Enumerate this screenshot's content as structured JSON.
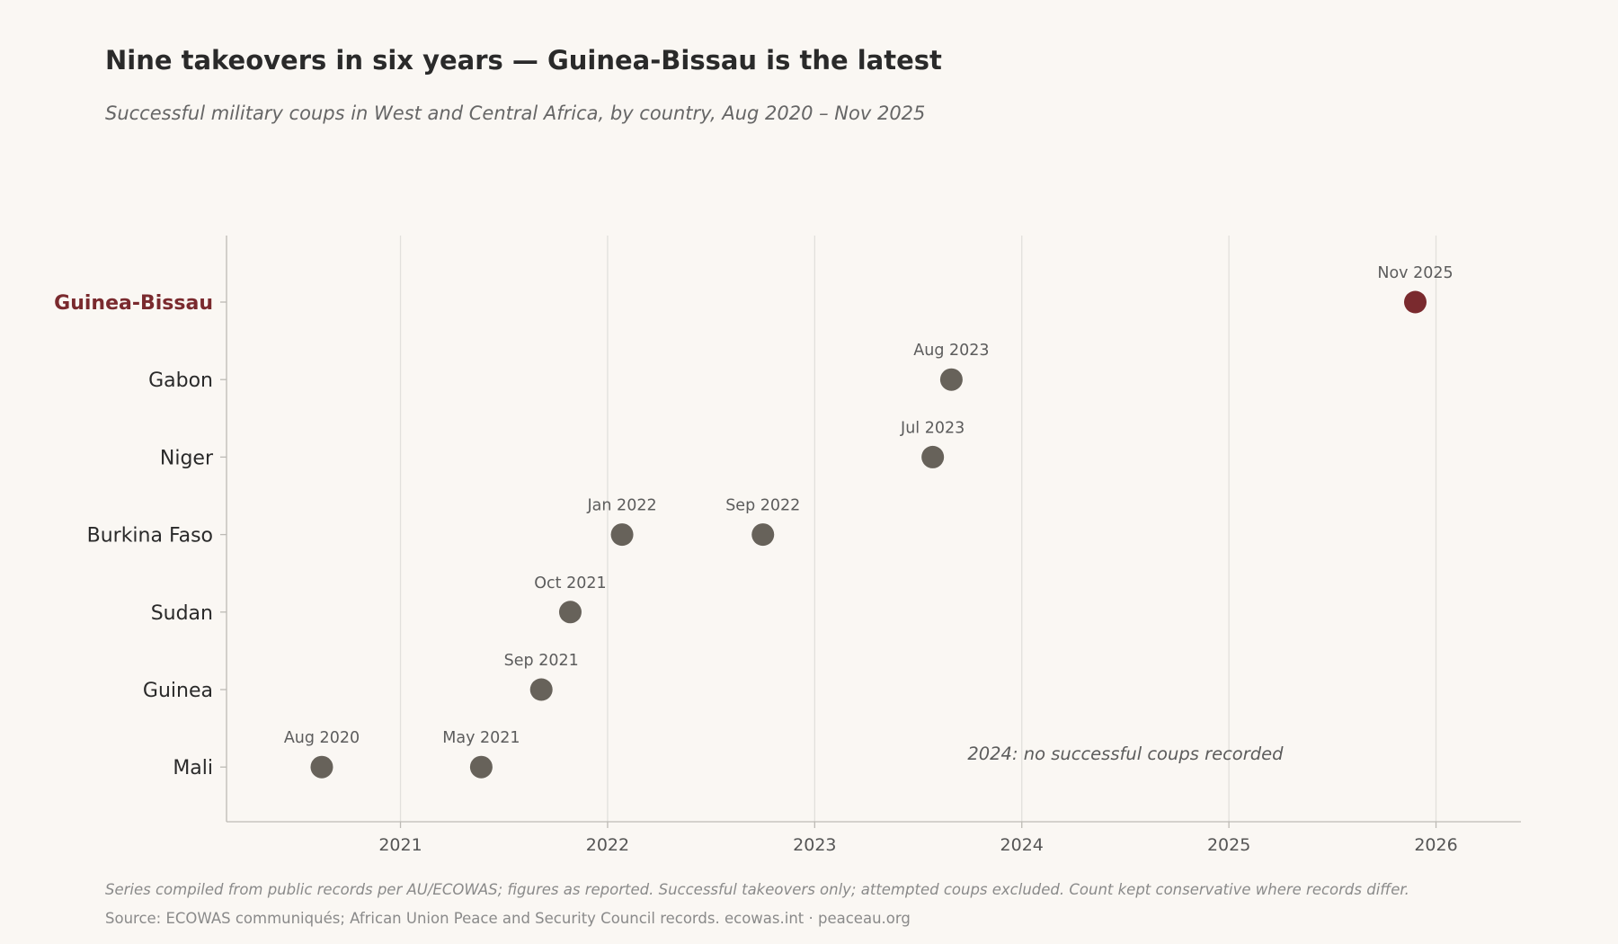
{
  "header": {
    "title": "Nine takeovers in six years — Guinea-Bissau is the latest",
    "subtitle": "Successful military coups in West and Central Africa, by country, Aug 2020 – Nov 2025"
  },
  "footer": {
    "note": "Series compiled from public records per AU/ECOWAS; figures as reported. Successful takeovers only; attempted coups excluded. Count kept conservative where records differ.",
    "source": "Source: ECOWAS communiqués; African Union Peace and Security Council records. ecowas.int · peaceau.org"
  },
  "chart_data": {
    "type": "scatter",
    "categories": [
      "Guinea-Bissau",
      "Gabon",
      "Niger",
      "Burkina Faso",
      "Sudan",
      "Guinea",
      "Mali"
    ],
    "highlight_category": "Guinea-Bissau",
    "xlim": [
      2020.16,
      2026.41
    ],
    "x_ticks": [
      2021,
      2022,
      2023,
      2024,
      2025,
      2026
    ],
    "grid": "vertical",
    "legend": "none",
    "points": [
      {
        "country": "Guinea-Bissau",
        "x": 2025.9,
        "label": "Nov 2025",
        "highlight": true
      },
      {
        "country": "Gabon",
        "x": 2023.66,
        "label": "Aug 2023",
        "highlight": false
      },
      {
        "country": "Niger",
        "x": 2023.57,
        "label": "Jul 2023",
        "highlight": false
      },
      {
        "country": "Burkina Faso",
        "x": 2022.07,
        "label": "Jan 2022",
        "highlight": false
      },
      {
        "country": "Burkina Faso",
        "x": 2022.75,
        "label": "Sep 2022",
        "highlight": false
      },
      {
        "country": "Sudan",
        "x": 2021.82,
        "label": "Oct 2021",
        "highlight": false
      },
      {
        "country": "Guinea",
        "x": 2021.68,
        "label": "Sep 2021",
        "highlight": false
      },
      {
        "country": "Mali",
        "x": 2020.62,
        "label": "Aug 2020",
        "highlight": false
      },
      {
        "country": "Mali",
        "x": 2021.39,
        "label": "May 2021",
        "highlight": false
      }
    ],
    "annotation": {
      "text": "2024: no successful coups recorded",
      "x": 2024.5,
      "country": "Mali"
    },
    "colors": {
      "point": "#67625a",
      "highlight": "#7a2a2e",
      "highlight_label": "#7a2a2e",
      "grid": "#e2e0dc",
      "axis": "#bdbab5"
    }
  }
}
